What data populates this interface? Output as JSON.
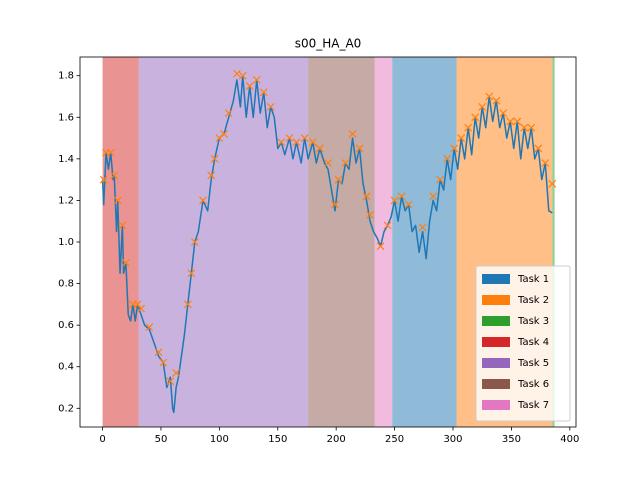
{
  "chart_data": {
    "type": "line",
    "title": "s00_HA_A0",
    "xlim": [
      -19.3,
      405.3
    ],
    "ylim": [
      0.11,
      1.89
    ],
    "xticks": [
      0,
      50,
      100,
      150,
      200,
      250,
      300,
      350,
      400
    ],
    "yticks": [
      0.2,
      0.4,
      0.6,
      0.8,
      {
        "value": 1,
        "label": "1.0"
      },
      1.2,
      1.4,
      1.6,
      1.8
    ],
    "legend": "lower right",
    "tasks": [
      {
        "name": "Task 1",
        "color": "#1f77b4",
        "start": 248,
        "end": 303
      },
      {
        "name": "Task 2",
        "color": "#ff7f0e",
        "start": 303,
        "end": 385
      },
      {
        "name": "Task 3",
        "color": "#2ca02c",
        "start": 385,
        "end": 387
      },
      {
        "name": "Task 4",
        "color": "#d62728",
        "start": 0,
        "end": 31
      },
      {
        "name": "Task 5",
        "color": "#9467bd",
        "start": 31,
        "end": 176
      },
      {
        "name": "Task 6",
        "color": "#8c564b",
        "start": 176,
        "end": 233
      },
      {
        "name": "Task 7",
        "color": "#e377c2",
        "start": 233,
        "end": 248
      }
    ],
    "series": [
      {
        "color": "#1f77b4",
        "x": [
          0,
          1,
          3,
          5,
          7,
          9,
          10,
          12,
          13,
          15,
          17,
          18,
          20,
          22,
          24,
          26,
          28,
          30,
          33,
          36,
          40,
          45,
          48,
          52,
          55,
          58,
          60,
          61,
          63,
          65,
          70,
          73,
          76,
          79,
          82,
          86,
          90,
          93,
          96,
          100,
          104,
          108,
          112,
          115,
          118,
          120,
          123,
          126,
          129,
          132,
          135,
          138,
          141,
          144,
          147,
          150,
          153,
          156,
          160,
          163,
          166,
          170,
          173,
          176,
          180,
          183,
          186,
          190,
          193,
          196,
          199,
          202,
          205,
          208,
          211,
          214,
          217,
          220,
          223,
          226,
          229,
          232,
          235,
          238,
          241,
          244,
          247,
          250,
          253,
          256,
          259,
          262,
          265,
          268,
          271,
          274,
          277,
          280,
          283,
          286,
          289,
          292,
          295,
          298,
          301,
          304,
          307,
          310,
          313,
          316,
          319,
          322,
          325,
          328,
          331,
          334,
          337,
          340,
          343,
          346,
          349,
          352,
          355,
          358,
          361,
          364,
          367,
          370,
          373,
          376,
          379,
          382,
          385
        ],
        "values": [
          1.3,
          1.18,
          1.43,
          1.35,
          1.43,
          1.3,
          1.32,
          1.05,
          1.2,
          0.85,
          1.08,
          0.85,
          0.9,
          0.65,
          0.62,
          0.7,
          0.62,
          0.7,
          0.65,
          0.6,
          0.58,
          0.5,
          0.45,
          0.42,
          0.3,
          0.35,
          0.2,
          0.18,
          0.3,
          0.35,
          0.55,
          0.7,
          0.85,
          1.0,
          1.05,
          1.2,
          1.15,
          1.3,
          1.4,
          1.5,
          1.52,
          1.6,
          1.68,
          1.78,
          1.65,
          1.8,
          1.6,
          1.75,
          1.6,
          1.78,
          1.62,
          1.72,
          1.55,
          1.65,
          1.6,
          1.45,
          1.48,
          1.42,
          1.5,
          1.4,
          1.48,
          1.38,
          1.5,
          1.4,
          1.48,
          1.38,
          1.45,
          1.38,
          1.35,
          1.25,
          1.15,
          1.3,
          1.28,
          1.38,
          1.35,
          1.5,
          1.38,
          1.45,
          1.28,
          1.2,
          1.1,
          1.05,
          1.02,
          0.98,
          1.05,
          1.08,
          1.12,
          1.2,
          1.1,
          1.22,
          1.15,
          1.18,
          1.05,
          1.08,
          0.95,
          1.05,
          0.92,
          1.1,
          1.2,
          1.15,
          1.3,
          1.25,
          1.4,
          1.3,
          1.45,
          1.35,
          1.5,
          1.4,
          1.55,
          1.42,
          1.6,
          1.5,
          1.65,
          1.55,
          1.7,
          1.58,
          1.68,
          1.55,
          1.62,
          1.5,
          1.58,
          1.45,
          1.58,
          1.4,
          1.55,
          1.45,
          1.55,
          1.4,
          1.45,
          1.3,
          1.38,
          1.15,
          1.14
        ]
      },
      {
        "color": "#ff7f0e",
        "marker": "x",
        "x": [
          1,
          3,
          7,
          10,
          13,
          17,
          20,
          26,
          30,
          33,
          40,
          48,
          52,
          58,
          63,
          73,
          76,
          79,
          86,
          93,
          96,
          100,
          104,
          108,
          115,
          120,
          126,
          132,
          138,
          144,
          153,
          160,
          166,
          173,
          180,
          186,
          193,
          199,
          202,
          208,
          214,
          220,
          226,
          229,
          238,
          244,
          250,
          256,
          262,
          274,
          283,
          289,
          295,
          301,
          307,
          313,
          319,
          325,
          331,
          337,
          343,
          349,
          355,
          361,
          367,
          373,
          379,
          385
        ],
        "values": [
          1.3,
          1.43,
          1.43,
          1.32,
          1.2,
          1.08,
          0.9,
          0.7,
          0.7,
          0.68,
          0.59,
          0.47,
          0.42,
          0.33,
          0.37,
          0.7,
          0.85,
          1.0,
          1.2,
          1.32,
          1.4,
          1.5,
          1.52,
          1.62,
          1.81,
          1.8,
          1.75,
          1.78,
          1.72,
          1.65,
          1.48,
          1.5,
          1.48,
          1.5,
          1.48,
          1.45,
          1.38,
          1.18,
          1.3,
          1.38,
          1.52,
          1.45,
          1.22,
          1.13,
          0.98,
          1.08,
          1.2,
          1.22,
          1.18,
          1.07,
          1.22,
          1.3,
          1.4,
          1.45,
          1.5,
          1.55,
          1.6,
          1.65,
          1.7,
          1.68,
          1.62,
          1.58,
          1.58,
          1.55,
          1.55,
          1.45,
          1.38,
          1.28
        ]
      }
    ]
  }
}
